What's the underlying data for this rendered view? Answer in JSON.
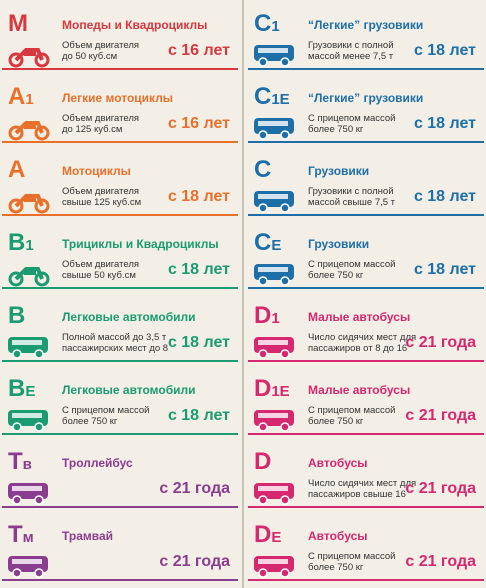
{
  "left": [
    {
      "code": "M",
      "sub": "",
      "name": "Мопеды и Квадроциклы",
      "desc": [
        "Объем двигателя",
        "до 50 куб.см"
      ],
      "age": "с 16 лет",
      "color": "#d8383f"
    },
    {
      "code": "A",
      "sub": "1",
      "name": "Легкие мотоциклы",
      "desc": [
        "Объем двигателя",
        "до 125 куб.см"
      ],
      "age": "с 16 лет",
      "color": "#e8702a"
    },
    {
      "code": "A",
      "sub": "",
      "name": "Мотоциклы",
      "desc": [
        "Объем двигателя",
        "свыше 125 куб.см"
      ],
      "age": "с 18 лет",
      "color": "#e8702a"
    },
    {
      "code": "B",
      "sub": "1",
      "name": "Трициклы и Квадроциклы",
      "desc": [
        "Объем двигателя",
        "свыше 50 куб.см"
      ],
      "age": "с 18 лет",
      "color": "#1a9b72"
    },
    {
      "code": "B",
      "sub": "",
      "name": "Легковые автомобили",
      "desc": [
        "Полной массой до 3,5 т ,",
        "пассажирских мест до 8"
      ],
      "age": "с 18 лет",
      "color": "#1a9b72"
    },
    {
      "code": "B",
      "sub": "E",
      "name": "Легковые автомобили",
      "desc": [
        "С прицепом массой",
        "более 750 кг"
      ],
      "age": "с 18 лет",
      "color": "#1a9b72"
    },
    {
      "code": "Т",
      "sub": "в",
      "name": "Троллейбус",
      "desc": [],
      "age": "с 21 года",
      "color": "#8a3d8f"
    },
    {
      "code": "Т",
      "sub": "м",
      "name": "Трамвай",
      "desc": [],
      "age": "с 21 года",
      "color": "#8a3d8f"
    }
  ],
  "right": [
    {
      "code": "C",
      "sub": "1",
      "name": "“Легкие” грузовики",
      "desc": [
        "Грузовики с полной",
        "массой менее 7,5 т"
      ],
      "age": "с 18 лет",
      "color": "#1e6fa8"
    },
    {
      "code": "C",
      "sub": "1E",
      "name": "“Легкие” грузовики",
      "desc": [
        "С прицепом массой",
        "более 750 кг"
      ],
      "age": "с 18 лет",
      "color": "#1e6fa8"
    },
    {
      "code": "C",
      "sub": "",
      "name": "Грузовики",
      "desc": [
        "Грузовики с полной",
        "массой свыше 7,5 т"
      ],
      "age": "с 18 лет",
      "color": "#1e6fa8"
    },
    {
      "code": "C",
      "sub": "E",
      "name": "Грузовики",
      "desc": [
        "С прицепом массой",
        "более 750 кг"
      ],
      "age": "с 18 лет",
      "color": "#1e6fa8"
    },
    {
      "code": "D",
      "sub": "1",
      "name": "Малые автобусы",
      "desc": [
        "Число сидячих мест для",
        "пассажиров от 8 до 16"
      ],
      "age": "с 21 года",
      "color": "#d6286e"
    },
    {
      "code": "D",
      "sub": "1E",
      "name": "Малые автобусы",
      "desc": [
        "С прицепом массой",
        "более 750 кг"
      ],
      "age": "с 21 года",
      "color": "#d6286e"
    },
    {
      "code": "D",
      "sub": "",
      "name": "Автобусы",
      "desc": [
        "Число сидячих мест для",
        "пассажиров свыше 16"
      ],
      "age": "с 21 года",
      "color": "#d6286e"
    },
    {
      "code": "D",
      "sub": "E",
      "name": "Автобусы",
      "desc": [
        "С прицепом массой",
        "более 750 кг"
      ],
      "age": "с 21 года",
      "color": "#d6286e"
    }
  ]
}
